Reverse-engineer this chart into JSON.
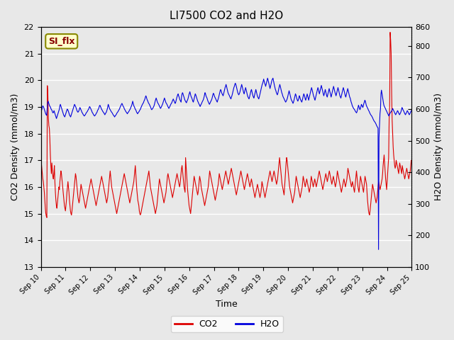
{
  "title": "LI7500 CO2 and H2O",
  "xlabel": "Time",
  "ylabel_left": "CO2 Density (mmol/m3)",
  "ylabel_right": "H2O Density (mmol/m3)",
  "ylim_left": [
    13.0,
    22.0
  ],
  "ylim_right": [
    100,
    860
  ],
  "xtick_labels": [
    "Sep 10",
    "Sep 11",
    "Sep 12",
    "Sep 13",
    "Sep 14",
    "Sep 15",
    "Sep 16",
    "Sep 17",
    "Sep 18",
    "Sep 19",
    "Sep 20",
    "Sep 21",
    "Sep 22",
    "Sep 23",
    "Sep 24",
    "Sep 25"
  ],
  "background_color": "#e8e8e8",
  "axes_bg": "#e8e8e8",
  "grid_color": "#ffffff",
  "annotation_label": "SI_flx",
  "annotation_bg": "#ffffcc",
  "annotation_border": "#888800",
  "line_co2_color": "#dd0000",
  "line_h2o_color": "#0000dd",
  "legend_co2": "CO2",
  "legend_h2o": "H2O",
  "co2_data": [
    17.0,
    16.9,
    16.7,
    16.5,
    16.3,
    16.2,
    16.0,
    15.8,
    15.5,
    15.2,
    15.0,
    14.9,
    14.85,
    19.8,
    19.5,
    18.6,
    18.3,
    18.2,
    17.8,
    17.2,
    16.8,
    16.5,
    16.9,
    16.6,
    16.4,
    16.3,
    16.5,
    16.8,
    16.2,
    15.8,
    15.5,
    15.3,
    15.2,
    15.4,
    15.6,
    15.8,
    16.0,
    15.9,
    16.2,
    16.4,
    16.6,
    16.5,
    16.3,
    16.1,
    15.9,
    15.7,
    15.5,
    15.3,
    15.2,
    15.1,
    15.3,
    15.5,
    15.8,
    16.0,
    16.2,
    16.0,
    15.8,
    15.5,
    15.3,
    15.1,
    15.0,
    14.95,
    15.1,
    15.3,
    15.5,
    15.7,
    15.9,
    16.1,
    16.3,
    16.5,
    16.4,
    16.2,
    16.0,
    15.8,
    15.6,
    15.5,
    15.4,
    15.5,
    15.7,
    15.9,
    16.1,
    16.0,
    15.9,
    15.8,
    15.7,
    15.6,
    15.5,
    15.4,
    15.3,
    15.2,
    15.3,
    15.4,
    15.5,
    15.6,
    15.7,
    15.8,
    15.9,
    16.0,
    16.1,
    16.2,
    16.3,
    16.2,
    16.1,
    16.0,
    15.9,
    15.8,
    15.7,
    15.6,
    15.5,
    15.4,
    15.3,
    15.4,
    15.5,
    15.6,
    15.7,
    15.8,
    15.9,
    16.0,
    16.1,
    16.2,
    16.3,
    16.4,
    16.3,
    16.2,
    16.1,
    16.0,
    15.9,
    15.8,
    15.7,
    15.6,
    15.5,
    15.4,
    15.5,
    15.6,
    15.8,
    16.0,
    16.2,
    16.4,
    16.6,
    16.4,
    16.2,
    16.0,
    15.9,
    15.8,
    15.7,
    15.6,
    15.5,
    15.4,
    15.3,
    15.2,
    15.1,
    15.0,
    15.1,
    15.2,
    15.3,
    15.4,
    15.5,
    15.6,
    15.7,
    15.8,
    15.9,
    16.0,
    16.1,
    16.2,
    16.3,
    16.4,
    16.5,
    16.4,
    16.3,
    16.2,
    16.1,
    16.0,
    15.9,
    15.8,
    15.7,
    15.6,
    15.5,
    15.4,
    15.5,
    15.6,
    15.7,
    15.8,
    15.9,
    16.0,
    16.1,
    16.2,
    16.4,
    16.6,
    16.8,
    16.5,
    16.2,
    15.9,
    15.7,
    15.5,
    15.4,
    15.3,
    15.1,
    15.0,
    14.95,
    15.0,
    15.1,
    15.2,
    15.3,
    15.4,
    15.5,
    15.6,
    15.7,
    15.8,
    15.9,
    16.0,
    16.1,
    16.2,
    16.3,
    16.4,
    16.5,
    16.6,
    16.4,
    16.2,
    16.0,
    15.9,
    15.8,
    15.7,
    15.6,
    15.5,
    15.4,
    15.3,
    15.2,
    15.1,
    15.0,
    15.1,
    15.2,
    15.3,
    15.5,
    15.7,
    15.9,
    16.1,
    16.3,
    16.2,
    16.1,
    16.0,
    15.9,
    15.8,
    15.7,
    15.6,
    15.5,
    15.4,
    15.5,
    15.6,
    15.7,
    15.8,
    16.0,
    16.2,
    16.4,
    16.5,
    16.4,
    16.3,
    16.2,
    16.1,
    16.0,
    15.9,
    15.8,
    15.7,
    15.6,
    15.7,
    15.8,
    15.9,
    16.0,
    16.1,
    16.2,
    16.3,
    16.4,
    16.5,
    16.4,
    16.3,
    16.2,
    16.1,
    16.0,
    16.1,
    16.3,
    16.5,
    16.7,
    16.8,
    16.6,
    16.4,
    16.2,
    16.0,
    15.9,
    15.8,
    17.1,
    16.8,
    16.5,
    16.2,
    15.9,
    15.7,
    15.5,
    15.3,
    15.2,
    15.1,
    15.0,
    15.2,
    15.4,
    15.6,
    15.8,
    16.0,
    16.2,
    16.4,
    16.3,
    16.2,
    16.1,
    16.0,
    15.9,
    15.8,
    15.7,
    15.8,
    16.0,
    16.2,
    16.4,
    16.3,
    16.2,
    16.0,
    15.9,
    15.8,
    15.7,
    15.6,
    15.5,
    15.4,
    15.3,
    15.4,
    15.5,
    15.6,
    15.7,
    15.8,
    15.9,
    16.0,
    16.2,
    16.4,
    16.6,
    16.5,
    16.4,
    16.3,
    16.2,
    16.1,
    16.0,
    15.9,
    15.8,
    15.7,
    15.6,
    15.5,
    15.6,
    15.7,
    15.8,
    15.9,
    16.0,
    16.1,
    16.3,
    16.5,
    16.4,
    16.3,
    16.2,
    16.1,
    16.0,
    15.9,
    16.0,
    16.1,
    16.2,
    16.3,
    16.4,
    16.5,
    16.6,
    16.5,
    16.4,
    16.3,
    16.2,
    16.1,
    16.2,
    16.3,
    16.4,
    16.5,
    16.6,
    16.7,
    16.6,
    16.5,
    16.4,
    16.3,
    16.2,
    16.1,
    16.0,
    15.9,
    15.8,
    15.7,
    15.8,
    15.9,
    16.0,
    16.1,
    16.2,
    16.3,
    16.4,
    16.5,
    16.6,
    16.5,
    16.4,
    16.3,
    16.2,
    16.1,
    16.0,
    15.9,
    16.0,
    16.1,
    16.2,
    16.3,
    16.4,
    16.5,
    16.4,
    16.3,
    16.2,
    16.1,
    16.0,
    16.1,
    16.2,
    16.3,
    16.2,
    16.1,
    16.0,
    15.9,
    15.8,
    15.7,
    15.6,
    15.7,
    15.8,
    15.9,
    16.0,
    16.1,
    16.0,
    15.9,
    15.8,
    15.7,
    15.6,
    15.7,
    15.8,
    16.0,
    16.2,
    16.1,
    16.0,
    15.9,
    15.8,
    15.7,
    15.6,
    15.7,
    15.8,
    15.9,
    16.0,
    16.1,
    16.2,
    16.3,
    16.4,
    16.5,
    16.6,
    16.5,
    16.4,
    16.3,
    16.2,
    16.3,
    16.4,
    16.5,
    16.6,
    16.5,
    16.4,
    16.3,
    16.2,
    16.1,
    16.2,
    16.3,
    16.5,
    16.7,
    16.9,
    17.1,
    16.9,
    16.7,
    16.5,
    16.3,
    16.1,
    16.0,
    15.9,
    15.8,
    15.7,
    16.0,
    16.3,
    16.6,
    16.9,
    17.1,
    17.0,
    16.8,
    16.6,
    16.4,
    16.2,
    16.0,
    15.9,
    15.8,
    15.7,
    15.6,
    15.5,
    15.4,
    15.5,
    15.6,
    15.7,
    15.8,
    16.0,
    16.2,
    16.4,
    16.3,
    16.2,
    16.1,
    16.0,
    15.9,
    15.8,
    15.7,
    15.6,
    15.7,
    15.8,
    15.9,
    16.0,
    16.2,
    16.4,
    16.3,
    16.2,
    16.1,
    16.0,
    16.1,
    16.2,
    16.3,
    16.2,
    16.1,
    16.0,
    15.9,
    15.8,
    15.9,
    16.0,
    16.2,
    16.4,
    16.3,
    16.2,
    16.1,
    16.0,
    16.1,
    16.2,
    16.3,
    16.2,
    16.1,
    16.0,
    16.1,
    16.2,
    16.3,
    16.4,
    16.5,
    16.6,
    16.5,
    16.4,
    16.3,
    16.2,
    16.1,
    16.0,
    15.9,
    16.0,
    16.1,
    16.2,
    16.3,
    16.4,
    16.5,
    16.4,
    16.3,
    16.2,
    16.3,
    16.4,
    16.5,
    16.6,
    16.5,
    16.4,
    16.3,
    16.2,
    16.1,
    16.2,
    16.3,
    16.4,
    16.3,
    16.2,
    16.1,
    16.0,
    16.1,
    16.2,
    16.4,
    16.6,
    16.5,
    16.4,
    16.3,
    16.2,
    16.1,
    16.0,
    15.9,
    15.8,
    15.9,
    16.0,
    16.1,
    16.2,
    16.3,
    16.2,
    16.1,
    16.0,
    16.1,
    16.2,
    16.3,
    16.5,
    16.7,
    16.6,
    16.5,
    16.4,
    16.3,
    16.2,
    16.1,
    16.0,
    16.1,
    16.2,
    16.1,
    16.0,
    15.9,
    15.8,
    16.0,
    16.2,
    16.4,
    16.6,
    16.4,
    16.2,
    16.0,
    15.9,
    15.8,
    16.0,
    16.2,
    16.4,
    16.3,
    16.2,
    16.1,
    16.0,
    15.9,
    15.8,
    16.0,
    16.2,
    16.4,
    16.3,
    16.2,
    16.1,
    15.8,
    15.5,
    15.3,
    15.1,
    15.0,
    14.95,
    15.1,
    15.3,
    15.5,
    15.7,
    15.9,
    16.1,
    16.0,
    15.9,
    15.8,
    15.7,
    15.6,
    15.5,
    15.4,
    15.5,
    15.6,
    15.8,
    16.0,
    16.2,
    16.1,
    16.0,
    15.9,
    16.0,
    16.1,
    16.2,
    16.3,
    16.5,
    16.8,
    17.0,
    17.2,
    16.9,
    16.6,
    16.3,
    16.1,
    15.9,
    16.2,
    16.5,
    16.8,
    17.1,
    18.5,
    19.0,
    21.8,
    21.5,
    21.0,
    19.5,
    18.5,
    18.0,
    17.5,
    17.2,
    17.0,
    16.8,
    16.7,
    16.8,
    17.0,
    16.9,
    16.8,
    16.7,
    16.6,
    16.5,
    16.7,
    16.9,
    16.8,
    16.7,
    16.6,
    16.5,
    16.8,
    16.7,
    16.6,
    16.5,
    16.4,
    16.3,
    16.4,
    16.5,
    16.6,
    16.7,
    16.6,
    16.5,
    16.4,
    16.3,
    16.4,
    16.5,
    16.6,
    16.8,
    17.0,
    16.9
  ],
  "h2o_data": [
    590,
    595,
    598,
    605,
    610,
    608,
    605,
    600,
    595,
    590,
    585,
    582,
    580,
    600,
    620,
    625,
    620,
    615,
    610,
    608,
    605,
    600,
    598,
    595,
    590,
    588,
    590,
    595,
    590,
    585,
    580,
    575,
    570,
    575,
    580,
    585,
    590,
    595,
    600,
    610,
    615,
    610,
    605,
    600,
    595,
    590,
    585,
    580,
    578,
    575,
    580,
    585,
    590,
    595,
    600,
    598,
    595,
    590,
    585,
    580,
    578,
    575,
    580,
    585,
    590,
    595,
    600,
    605,
    610,
    615,
    612,
    608,
    605,
    600,
    595,
    592,
    590,
    592,
    595,
    600,
    605,
    602,
    598,
    595,
    590,
    588,
    585,
    582,
    580,
    578,
    580,
    582,
    585,
    588,
    590,
    592,
    595,
    598,
    600,
    605,
    608,
    605,
    602,
    598,
    595,
    590,
    588,
    585,
    582,
    580,
    578,
    580,
    582,
    585,
    588,
    590,
    595,
    598,
    600,
    605,
    610,
    612,
    608,
    605,
    600,
    598,
    595,
    592,
    590,
    588,
    585,
    582,
    585,
    588,
    590,
    595,
    600,
    608,
    615,
    610,
    605,
    600,
    598,
    595,
    592,
    590,
    588,
    585,
    582,
    580,
    578,
    575,
    578,
    580,
    582,
    585,
    588,
    590,
    592,
    595,
    598,
    600,
    605,
    608,
    612,
    615,
    618,
    615,
    610,
    608,
    605,
    600,
    598,
    595,
    592,
    590,
    588,
    585,
    588,
    590,
    592,
    595,
    598,
    600,
    605,
    608,
    612,
    618,
    625,
    618,
    612,
    608,
    605,
    600,
    598,
    595,
    590,
    588,
    585,
    588,
    590,
    592,
    595,
    598,
    600,
    605,
    608,
    612,
    615,
    618,
    620,
    625,
    628,
    632,
    638,
    642,
    638,
    632,
    628,
    625,
    620,
    618,
    615,
    612,
    608,
    605,
    600,
    598,
    600,
    602,
    605,
    608,
    612,
    618,
    625,
    630,
    635,
    630,
    625,
    620,
    618,
    615,
    612,
    608,
    605,
    602,
    605,
    608,
    612,
    615,
    620,
    625,
    630,
    635,
    630,
    625,
    620,
    618,
    615,
    612,
    608,
    605,
    602,
    605,
    608,
    612,
    615,
    618,
    620,
    625,
    628,
    632,
    628,
    625,
    620,
    618,
    622,
    628,
    635,
    640,
    645,
    648,
    642,
    638,
    632,
    628,
    625,
    622,
    640,
    648,
    652,
    648,
    642,
    638,
    632,
    628,
    625,
    622,
    620,
    625,
    628,
    632,
    638,
    645,
    650,
    655,
    648,
    642,
    638,
    635,
    630,
    625,
    622,
    628,
    635,
    642,
    648,
    645,
    640,
    635,
    630,
    625,
    622,
    618,
    615,
    612,
    608,
    612,
    615,
    618,
    622,
    625,
    628,
    632,
    638,
    645,
    652,
    648,
    642,
    638,
    635,
    630,
    625,
    622,
    618,
    615,
    618,
    622,
    625,
    628,
    632,
    638,
    645,
    650,
    648,
    642,
    638,
    635,
    632,
    628,
    625,
    622,
    628,
    632,
    638,
    645,
    652,
    658,
    662,
    658,
    652,
    648,
    645,
    642,
    648,
    655,
    662,
    668,
    672,
    678,
    672,
    665,
    658,
    652,
    648,
    645,
    642,
    638,
    635,
    632,
    638,
    642,
    648,
    655,
    662,
    668,
    672,
    678,
    682,
    678,
    672,
    665,
    658,
    652,
    648,
    645,
    648,
    652,
    658,
    665,
    672,
    678,
    672,
    665,
    658,
    652,
    648,
    655,
    662,
    668,
    662,
    655,
    648,
    642,
    638,
    635,
    632,
    638,
    645,
    652,
    658,
    662,
    655,
    648,
    642,
    638,
    635,
    642,
    648,
    655,
    662,
    655,
    648,
    642,
    638,
    635,
    632,
    638,
    645,
    652,
    658,
    665,
    672,
    678,
    682,
    688,
    695,
    688,
    682,
    678,
    672,
    678,
    685,
    692,
    698,
    692,
    685,
    678,
    672,
    665,
    672,
    678,
    685,
    692,
    695,
    698,
    690,
    682,
    675,
    668,
    662,
    658,
    652,
    648,
    645,
    650,
    658,
    665,
    672,
    678,
    672,
    665,
    658,
    652,
    648,
    642,
    638,
    635,
    632,
    628,
    625,
    622,
    625,
    628,
    632,
    638,
    645,
    652,
    658,
    652,
    645,
    638,
    632,
    628,
    625,
    622,
    618,
    622,
    628,
    635,
    642,
    648,
    645,
    638,
    632,
    628,
    625,
    630,
    635,
    642,
    638,
    632,
    628,
    625,
    622,
    628,
    635,
    642,
    648,
    645,
    638,
    632,
    628,
    635,
    642,
    648,
    642,
    635,
    628,
    635,
    642,
    648,
    655,
    662,
    668,
    662,
    655,
    648,
    642,
    638,
    632,
    628,
    635,
    642,
    648,
    655,
    662,
    668,
    662,
    655,
    648,
    655,
    662,
    668,
    675,
    668,
    662,
    655,
    648,
    642,
    648,
    655,
    662,
    655,
    648,
    642,
    638,
    645,
    652,
    658,
    665,
    658,
    652,
    645,
    638,
    645,
    652,
    658,
    665,
    672,
    665,
    658,
    652,
    648,
    642,
    648,
    655,
    662,
    668,
    662,
    655,
    648,
    642,
    638,
    635,
    642,
    648,
    655,
    662,
    668,
    662,
    655,
    648,
    642,
    638,
    645,
    652,
    658,
    665,
    658,
    652,
    645,
    638,
    635,
    628,
    622,
    618,
    612,
    608,
    605,
    602,
    600,
    598,
    595,
    592,
    590,
    588,
    592,
    598,
    605,
    612,
    608,
    602,
    598,
    602,
    608,
    615,
    612,
    608,
    605,
    612,
    618,
    622,
    628,
    625,
    618,
    612,
    608,
    605,
    602,
    598,
    595,
    592,
    588,
    585,
    582,
    580,
    578,
    575,
    572,
    568,
    565,
    562,
    560,
    558,
    555,
    552,
    548,
    545,
    542,
    540,
    155,
    510,
    550,
    585,
    600,
    648,
    660,
    650,
    640,
    630,
    620,
    612,
    608,
    605,
    602,
    598,
    595,
    592,
    588,
    585,
    582,
    578,
    582,
    585,
    588,
    590,
    592,
    595,
    598,
    602,
    598,
    595,
    592,
    588,
    585,
    582,
    585,
    588,
    592,
    595,
    592,
    588,
    585,
    582,
    585,
    588,
    592,
    598,
    605,
    602,
    598,
    595,
    592,
    588,
    585,
    582,
    585,
    588,
    592,
    595,
    592,
    588,
    585,
    582,
    585,
    588,
    592,
    595,
    595
  ]
}
